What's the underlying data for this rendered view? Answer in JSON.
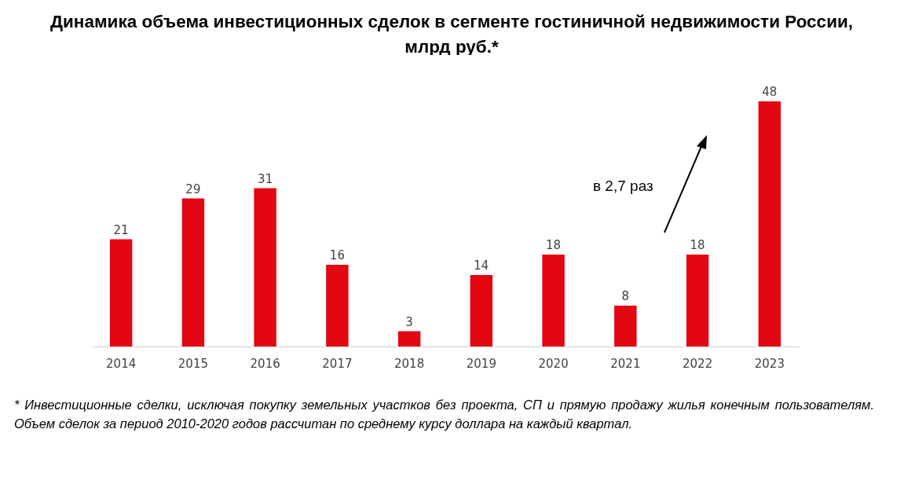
{
  "chart_data": {
    "type": "bar",
    "title": "Динамика объема инвестиционных сделок в сегменте гостиничной недвижимости России, млрд руб.*",
    "categories": [
      "2014",
      "2015",
      "2016",
      "2017",
      "2018",
      "2019",
      "2020",
      "2021",
      "2022",
      "2023"
    ],
    "values": [
      21,
      29,
      31,
      16,
      3,
      14,
      18,
      8,
      18,
      48
    ],
    "color": "#e30613",
    "data_labels": true,
    "grid": false,
    "annotations": [
      "в 2,7 раз",
      "* Инвестиционные сделки, исключая покупку земельных участков без проекта, СП и прямую продажу жилья конечным пользователям. Объем сделок за период 2010-2020 годов рассчитан по среднему курсу доллара на каждый квартал."
    ]
  }
}
